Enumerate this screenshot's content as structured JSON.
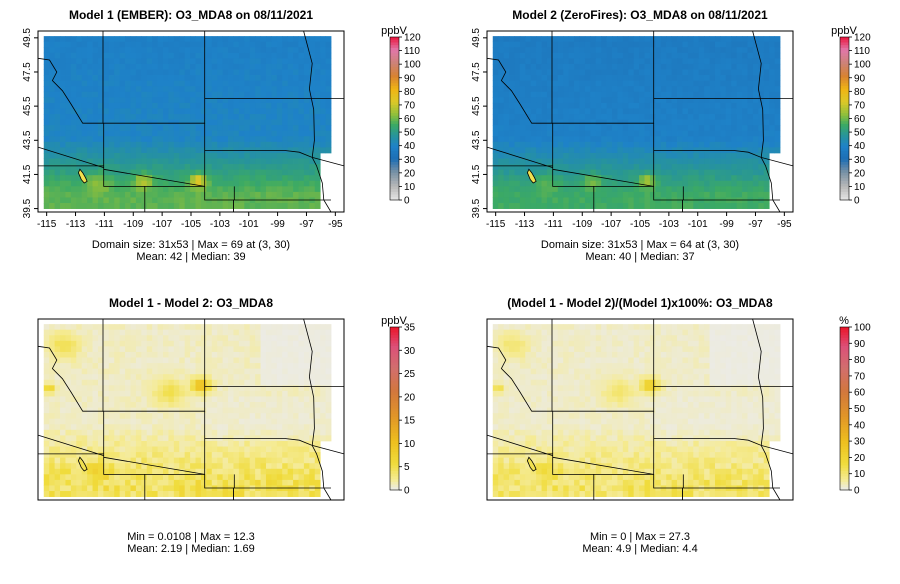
{
  "panels": [
    {
      "id": "p1",
      "title": "Model 1 (EMBER): O3_MDA8 on 08/11/2021",
      "scheme": "ozone",
      "vmin": 0,
      "vmax": 120,
      "unit_label": "ppbV",
      "legend_ticks": [
        "120",
        "110",
        "100",
        "90",
        "80",
        "70",
        "60",
        "50",
        "40",
        "30",
        "20",
        "10",
        "0"
      ],
      "show_axes": true,
      "x_ticks": [
        "-115",
        "-113",
        "-111",
        "-109",
        "-107",
        "-105",
        "-103",
        "-101",
        "-99",
        "-97",
        "-95"
      ],
      "y_ticks": [
        "39.5",
        "41.5",
        "43.5",
        "45.5",
        "47.5",
        "49.5"
      ],
      "stats_line1": "Domain size: 31x53 | Max = 69 at (3, 30)",
      "stats_line2": "Mean: 42 |  Median: 39",
      "field": {
        "background": 40,
        "south_mean": 56,
        "hotspots": [
          [
            -104.5,
            41.1,
            22,
            0.55
          ],
          [
            -108.3,
            41.1,
            14,
            0.6
          ],
          [
            -111.5,
            41.0,
            8,
            0.8
          ]
        ]
      }
    },
    {
      "id": "p2",
      "title": "Model 2 (ZeroFires): O3_MDA8 on 08/11/2021",
      "scheme": "ozone",
      "vmin": 0,
      "vmax": 120,
      "unit_label": "ppbV",
      "legend_ticks": [
        "120",
        "110",
        "100",
        "90",
        "80",
        "70",
        "60",
        "50",
        "40",
        "30",
        "20",
        "10",
        "0"
      ],
      "show_axes": true,
      "x_ticks": [
        "-115",
        "-113",
        "-111",
        "-109",
        "-107",
        "-105",
        "-103",
        "-101",
        "-99",
        "-97",
        "-95"
      ],
      "y_ticks": [
        "39.5",
        "41.5",
        "43.5",
        "45.5",
        "47.5",
        "49.5"
      ],
      "stats_line1": "Domain size: 31x53 | Max = 64 at (3, 30)",
      "stats_line2": "Mean: 40 |  Median: 37",
      "field": {
        "background": 38,
        "south_mean": 53,
        "hotspots": [
          [
            -104.5,
            41.1,
            16,
            0.55
          ],
          [
            -108.3,
            41.1,
            10,
            0.6
          ],
          [
            -111.5,
            41.0,
            6,
            0.8
          ]
        ]
      }
    },
    {
      "id": "p3",
      "title": "Model 1 - Model 2: O3_MDA8",
      "scheme": "diff",
      "vmin": 0,
      "vmax": 35,
      "unit_label": "ppbV",
      "legend_ticks": [
        "35",
        "30",
        "25",
        "20",
        "15",
        "10",
        "5",
        "0"
      ],
      "show_axes": false,
      "stats_line1": "Min = 0.0108 | Max = 12.3",
      "stats_line2": "Mean: 2.19 |  Median: 1.69",
      "field": {
        "background": 1.0,
        "south_mean": 4.5,
        "hotspots": [
          [
            -104.3,
            46.0,
            10,
            0.6
          ],
          [
            -106.5,
            45.6,
            4,
            1.0
          ],
          [
            -113.8,
            48.3,
            4,
            1.0
          ],
          [
            -114.8,
            45.8,
            6,
            0.4
          ],
          [
            -111.5,
            41.0,
            4,
            0.7
          ]
        ]
      }
    },
    {
      "id": "p4",
      "title": "(Model 1 - Model 2)/(Model 1)x100%: O3_MDA8",
      "scheme": "diff",
      "vmin": 0,
      "vmax": 100,
      "unit_label": "%",
      "legend_ticks": [
        "100",
        "90",
        "80",
        "70",
        "60",
        "50",
        "40",
        "30",
        "20",
        "10",
        "0"
      ],
      "show_axes": false,
      "stats_line1": "Min = 0 | Max = 27.3",
      "stats_line2": "Mean: 4.9 |  Median: 4.4",
      "field": {
        "background": 2.5,
        "south_mean": 11,
        "hotspots": [
          [
            -104.3,
            46.0,
            22,
            0.6
          ],
          [
            -106.5,
            45.6,
            8,
            1.0
          ],
          [
            -113.8,
            48.3,
            8,
            1.0
          ],
          [
            -114.8,
            45.8,
            12,
            0.4
          ],
          [
            -111.5,
            41.0,
            8,
            0.7
          ]
        ]
      }
    }
  ],
  "colors": {
    "frame": "#000000",
    "missing": "#e6e6e6"
  }
}
